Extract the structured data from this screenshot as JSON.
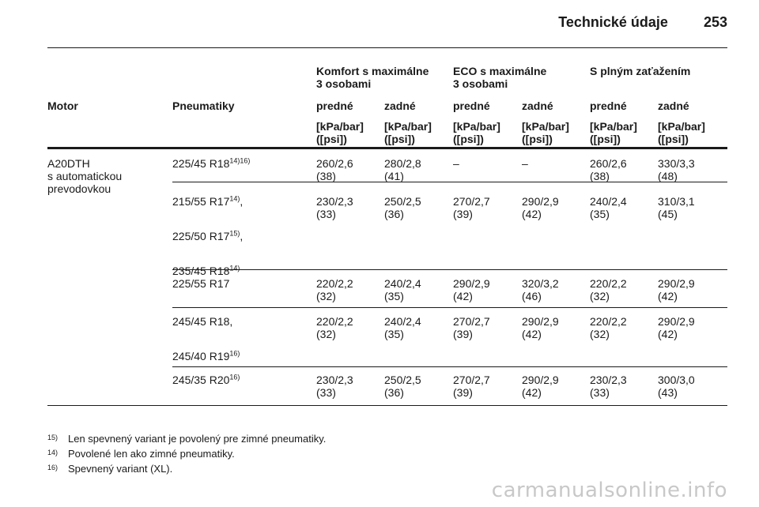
{
  "header": {
    "title": "Technické údaje",
    "page": "253"
  },
  "groups": [
    "Komfort s maximálne\n3 osobami",
    "ECO s maximálne\n3 osobami",
    "S plným zaťažením"
  ],
  "cols": {
    "motor": "Motor",
    "tires": "Pneumatiky",
    "front": "predné",
    "rear": "zadné",
    "unit": "[kPa/bar]\n([psi])"
  },
  "motor": "A20DTH\ns automatickou\nprevodovkou",
  "rows": [
    {
      "tires": [
        {
          "t": "225/45 R18",
          "s": "14)16)"
        }
      ],
      "vals": [
        [
          "260/2,6",
          "(38)"
        ],
        [
          "280/2,8",
          "(41)"
        ],
        [
          "–",
          ""
        ],
        [
          "–",
          ""
        ],
        [
          "260/2,6",
          "(38)"
        ],
        [
          "330/3,3",
          "(48)"
        ]
      ]
    },
    {
      "tires": [
        {
          "t": "215/55 R17",
          "s": "14)",
          "e": ","
        },
        {
          "t": "225/50 R17",
          "s": "15)",
          "e": ","
        },
        {
          "t": "235/45 R18",
          "s": "14)"
        }
      ],
      "vals": [
        [
          "230/2,3",
          "(33)"
        ],
        [
          "250/2,5",
          "(36)"
        ],
        [
          "270/2,7",
          "(39)"
        ],
        [
          "290/2,9",
          "(42)"
        ],
        [
          "240/2,4",
          "(35)"
        ],
        [
          "310/3,1",
          "(45)"
        ]
      ]
    },
    {
      "tires": [
        {
          "t": "225/55 R17"
        }
      ],
      "vals": [
        [
          "220/2,2",
          "(32)"
        ],
        [
          "240/2,4",
          "(35)"
        ],
        [
          "290/2,9",
          "(42)"
        ],
        [
          "320/3,2",
          "(46)"
        ],
        [
          "220/2,2",
          "(32)"
        ],
        [
          "290/2,9",
          "(42)"
        ]
      ]
    },
    {
      "tires": [
        {
          "t": "245/45 R18,"
        },
        {
          "t": "245/40 R19",
          "s": "16)"
        }
      ],
      "vals": [
        [
          "220/2,2",
          "(32)"
        ],
        [
          "240/2,4",
          "(35)"
        ],
        [
          "270/2,7",
          "(39)"
        ],
        [
          "290/2,9",
          "(42)"
        ],
        [
          "220/2,2",
          "(32)"
        ],
        [
          "290/2,9",
          "(42)"
        ]
      ]
    },
    {
      "tires": [
        {
          "t": "245/35 R20",
          "s": "16)"
        }
      ],
      "vals": [
        [
          "230/2,3",
          "(33)"
        ],
        [
          "250/2,5",
          "(36)"
        ],
        [
          "270/2,7",
          "(39)"
        ],
        [
          "290/2,9",
          "(42)"
        ],
        [
          "230/2,3",
          "(33)"
        ],
        [
          "300/3,0",
          "(43)"
        ]
      ]
    }
  ],
  "footnotes": [
    {
      "mark": "15)",
      "text": "Len spevnený variant je povolený pre zimné pneumatiky."
    },
    {
      "mark": "14)",
      "text": "Povolené len ako zimné pneumatiky."
    },
    {
      "mark": "16)",
      "text": "Spevnený variant (XL)."
    }
  ],
  "watermark": "carmanualsonline.info"
}
